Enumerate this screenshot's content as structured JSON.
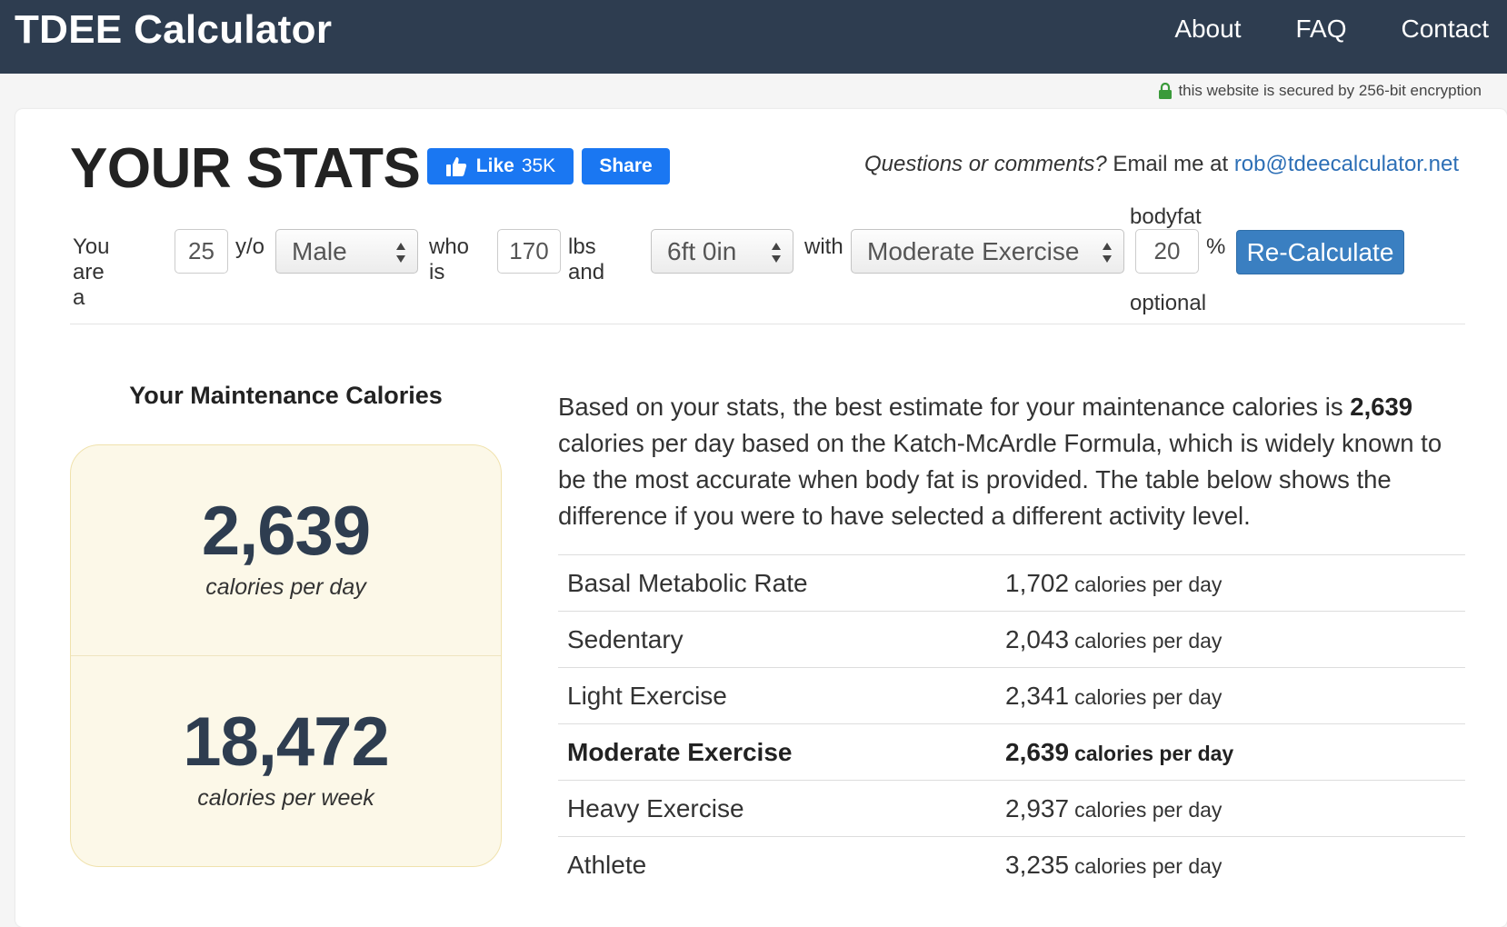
{
  "navbar": {
    "brand": "TDEE Calculator",
    "links": [
      "About",
      "FAQ",
      "Contact"
    ]
  },
  "security_note": "this website is secured by 256-bit encryption",
  "header": {
    "title": "YOUR STATS",
    "fb_like_label": "Like",
    "fb_like_count": "35K",
    "fb_share_label": "Share",
    "questions_prefix": "Questions or comments?",
    "email_prefix": " Email me at ",
    "email": "rob@tdeecalculator.net"
  },
  "form": {
    "you_are_a": "You are a",
    "age": "25",
    "yo": "y/o",
    "sex": "Male",
    "who_is": "who is",
    "weight": "170",
    "lbs_and": "lbs and",
    "height": "6ft 0in",
    "with": "with",
    "activity": "Moderate Exercise",
    "bodyfat_label": "bodyfat",
    "bodyfat": "20",
    "percent": "%",
    "optional_label": "optional",
    "recalc_label": "Re-Calculate"
  },
  "maintenance": {
    "heading": "Your Maintenance Calories",
    "daily": "2,639",
    "daily_unit": "calories per day",
    "weekly": "18,472",
    "weekly_unit": "calories per week"
  },
  "description": {
    "part1": "Based on your stats, the best estimate for your maintenance calories is ",
    "bold_value": "2,639",
    "part2": " calories per day based on the Katch-McArdle Formula, which is widely known to be the most accurate when body fat is provided. The table below shows the difference if you were to have selected a different activity level."
  },
  "levels": [
    {
      "name": "Basal Metabolic Rate",
      "value": "1,702",
      "unit": "calories per day"
    },
    {
      "name": "Sedentary",
      "value": "2,043",
      "unit": "calories per day"
    },
    {
      "name": "Light Exercise",
      "value": "2,341",
      "unit": "calories per day"
    },
    {
      "name": "Moderate Exercise",
      "value": "2,639",
      "unit": "calories per day"
    },
    {
      "name": "Heavy Exercise",
      "value": "2,937",
      "unit": "calories per day"
    },
    {
      "name": "Athlete",
      "value": "3,235",
      "unit": "calories per day"
    }
  ],
  "colors": {
    "navbar": "#2e3d50",
    "facebook": "#1a77f2",
    "button": "#3a7fc1",
    "maintenance_bg": "#fcf8e8",
    "link": "#2d6fb6",
    "lock": "#3a9a3a"
  }
}
